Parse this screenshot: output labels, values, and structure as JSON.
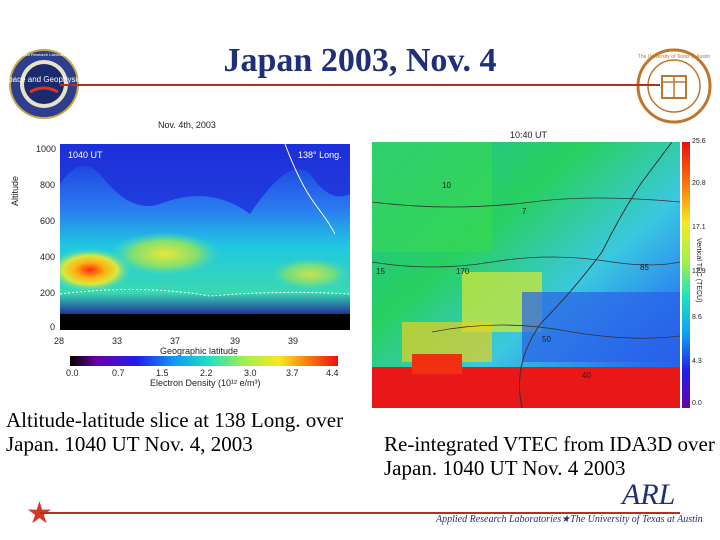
{
  "slide": {
    "title": "Japan 2003, Nov. 4",
    "caption_left": "Altitude-latitude slice at 138 Long. over Japan.  1040 UT Nov. 4, 2003",
    "caption_right": "Re-integrated VTEC from IDA3D over Japan. 1040 UT Nov. 4 2003",
    "arl": "ARL",
    "arl_subtitle": "Applied Research Laboratories★The University of Texas at Austin",
    "colors": {
      "title": "#1f2f7a",
      "rule": "#b0321e",
      "star": "#d4362a"
    }
  },
  "logos": {
    "left": "Space and Geophysics",
    "left_ring": "Applied Research Laboratories",
    "right_ring": "The University of Texas at Austin"
  },
  "plot_left": {
    "date": "Nov. 4th, 2003",
    "ut": "1040 UT",
    "long": "138° Long.",
    "ylabel": "Altitude",
    "yticks": [
      "1000",
      "800",
      "600",
      "400",
      "200",
      "0"
    ],
    "xticks": [
      "28",
      "33",
      "37",
      "39",
      "39"
    ],
    "xlabel": "Geographic latitude",
    "cbar_ticks": [
      "0.0",
      "0.7",
      "1.5",
      "2.2",
      "3.0",
      "3.7",
      "4.4"
    ],
    "cbar_label": "Electron Density (10¹² e/m³)"
  },
  "plot_right": {
    "ut": "10:40 UT",
    "cbar_ticks": [
      "25.6",
      "20.8",
      "17.1",
      "12.9",
      "8.6",
      "4.3",
      "0.0"
    ],
    "cbar_label": "Vertical TEC (TECU)",
    "labels": [
      "7",
      "10",
      "15",
      "170",
      "85",
      "50",
      "40"
    ]
  }
}
